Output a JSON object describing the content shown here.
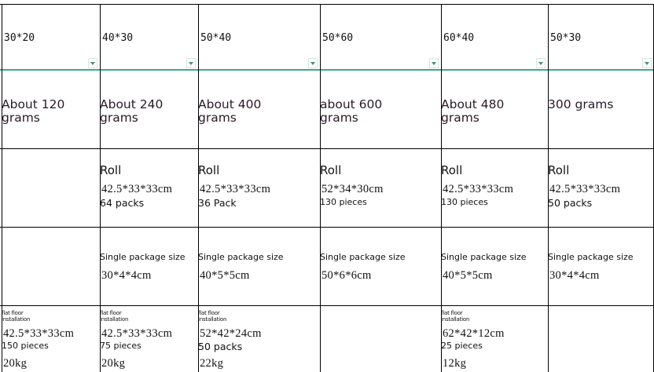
{
  "columns": [
    {
      "size": "30*20",
      "weight": "About 120 grams",
      "roll": "",
      "dims3": "",
      "qty3": "",
      "label4": "",
      "dims4": "",
      "install": "flat floor installation",
      "dims5": "42.5*33*33cm",
      "qty5": "150 pieces",
      "kg": "20kg"
    },
    {
      "size": "40*30",
      "weight": "About 240 grams",
      "roll": "Roll",
      "dims3": "42.5*33*33cm",
      "qty3": "64 packs",
      "label4": "Single package size",
      "dims4": "30*4*4cm",
      "install": "flat floor installation",
      "dims5": "42.5*33*33cm",
      "qty5": "75 pieces",
      "kg": "20kg"
    },
    {
      "size": "50*40",
      "weight": "About 400 grams",
      "roll": "Roll",
      "dims3": "42.5*33*33cm",
      "qty3": "36 Pack",
      "label4": "Single package size",
      "dims4": "40*5*5cm",
      "install": "flat floor installation",
      "dims5": "52*42*24cm",
      "qty5": "50 packs",
      "kg": "22kg"
    },
    {
      "size": "50*60",
      "weight": "about 600 grams",
      "roll": "Roll",
      "dims3": "52*34*30cm",
      "qty3": "130 pieces",
      "label4": "Single package size",
      "dims4": "50*6*6cm",
      "install": "",
      "dims5": "",
      "qty5": "",
      "kg": ""
    },
    {
      "size": "60*40",
      "weight": "About 480 grams",
      "roll": "Roll",
      "dims3": "42.5*33*33cm",
      "qty3": "130 pieces",
      "label4": "Single package size",
      "dims4": "40*5*5cm",
      "install": "flat floor installation",
      "dims5": "62*42*12cm",
      "qty5": "25 pieces",
      "kg": "12kg"
    },
    {
      "size": "50*30",
      "weight": "300 grams",
      "roll": "Roll",
      "dims3": "42.5*33*33cm",
      "qty3": "50 packs",
      "label4": "Single package size",
      "dims4": "30*4*4cm",
      "install": "",
      "dims5": "",
      "qty5": "",
      "kg": ""
    }
  ],
  "colors": {
    "grid": "#000000",
    "frozen_row_line": "#3aaa86",
    "dropdown_arrow": "#2e9f78"
  }
}
